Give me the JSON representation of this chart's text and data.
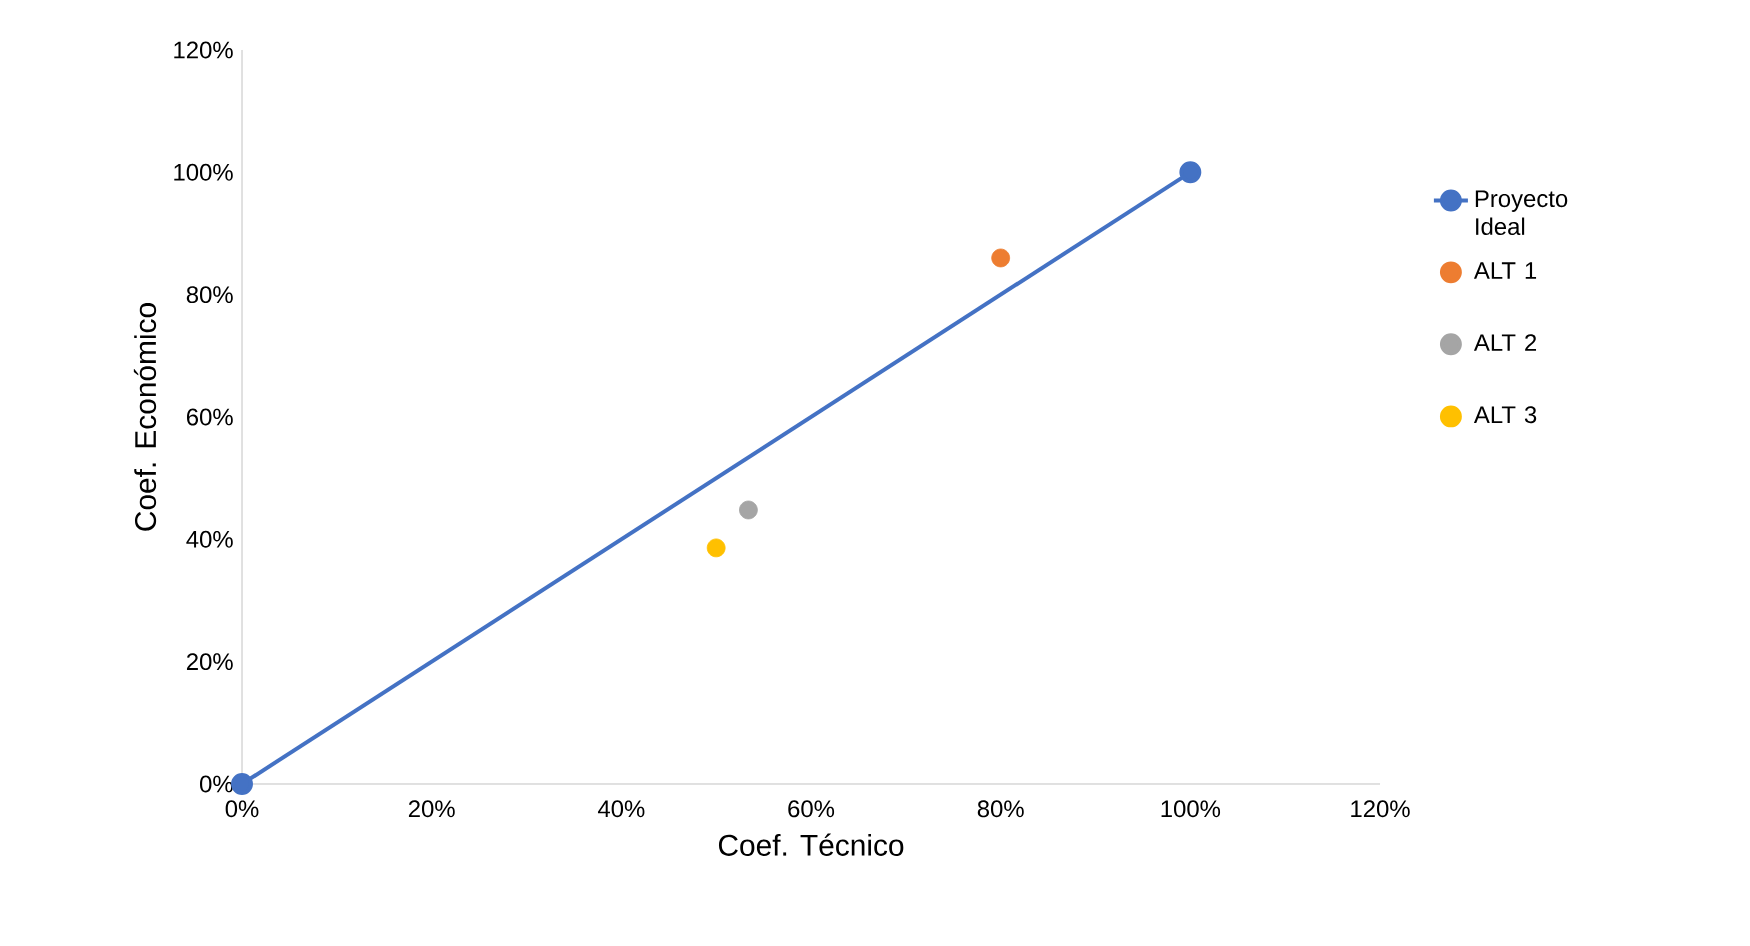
{
  "chart_data": {
    "type": "scatter",
    "xlabel": "Coef. Técnico",
    "ylabel": "Coef. Económico",
    "marker": "circle",
    "legend": "right",
    "grid": false,
    "xlim": [
      0,
      120
    ],
    "ylim": [
      0,
      120
    ],
    "xticks": [
      {
        "value": 0,
        "label": "0%"
      },
      {
        "value": 20,
        "label": "20%"
      },
      {
        "value": 40,
        "label": "40%"
      },
      {
        "value": 60,
        "label": "60%"
      },
      {
        "value": 80,
        "label": "80%"
      },
      {
        "value": 100,
        "label": "100%"
      },
      {
        "value": 120,
        "label": "120%"
      }
    ],
    "yticks": [
      {
        "value": 0,
        "label": "0%"
      },
      {
        "value": 20,
        "label": "20%"
      },
      {
        "value": 40,
        "label": "40%"
      },
      {
        "value": 60,
        "label": "60%"
      },
      {
        "value": 80,
        "label": "80%"
      },
      {
        "value": 100,
        "label": "100%"
      },
      {
        "value": 120,
        "label": "120%"
      }
    ],
    "series": [
      {
        "name": "Proyecto Ideal",
        "type": "line",
        "color": "#4472c4",
        "x": [
          0,
          100
        ],
        "values": [
          0,
          100
        ]
      },
      {
        "name": "ALT 1",
        "color": "#ed7d31",
        "x": [
          80
        ],
        "values": [
          86
        ]
      },
      {
        "name": "ALT 2",
        "color": "#a5a5a5",
        "x": [
          53.4
        ],
        "values": [
          44.8
        ]
      },
      {
        "name": "ALT 3",
        "color": "#ffc000",
        "x": [
          50
        ],
        "values": [
          38.6
        ]
      }
    ]
  }
}
